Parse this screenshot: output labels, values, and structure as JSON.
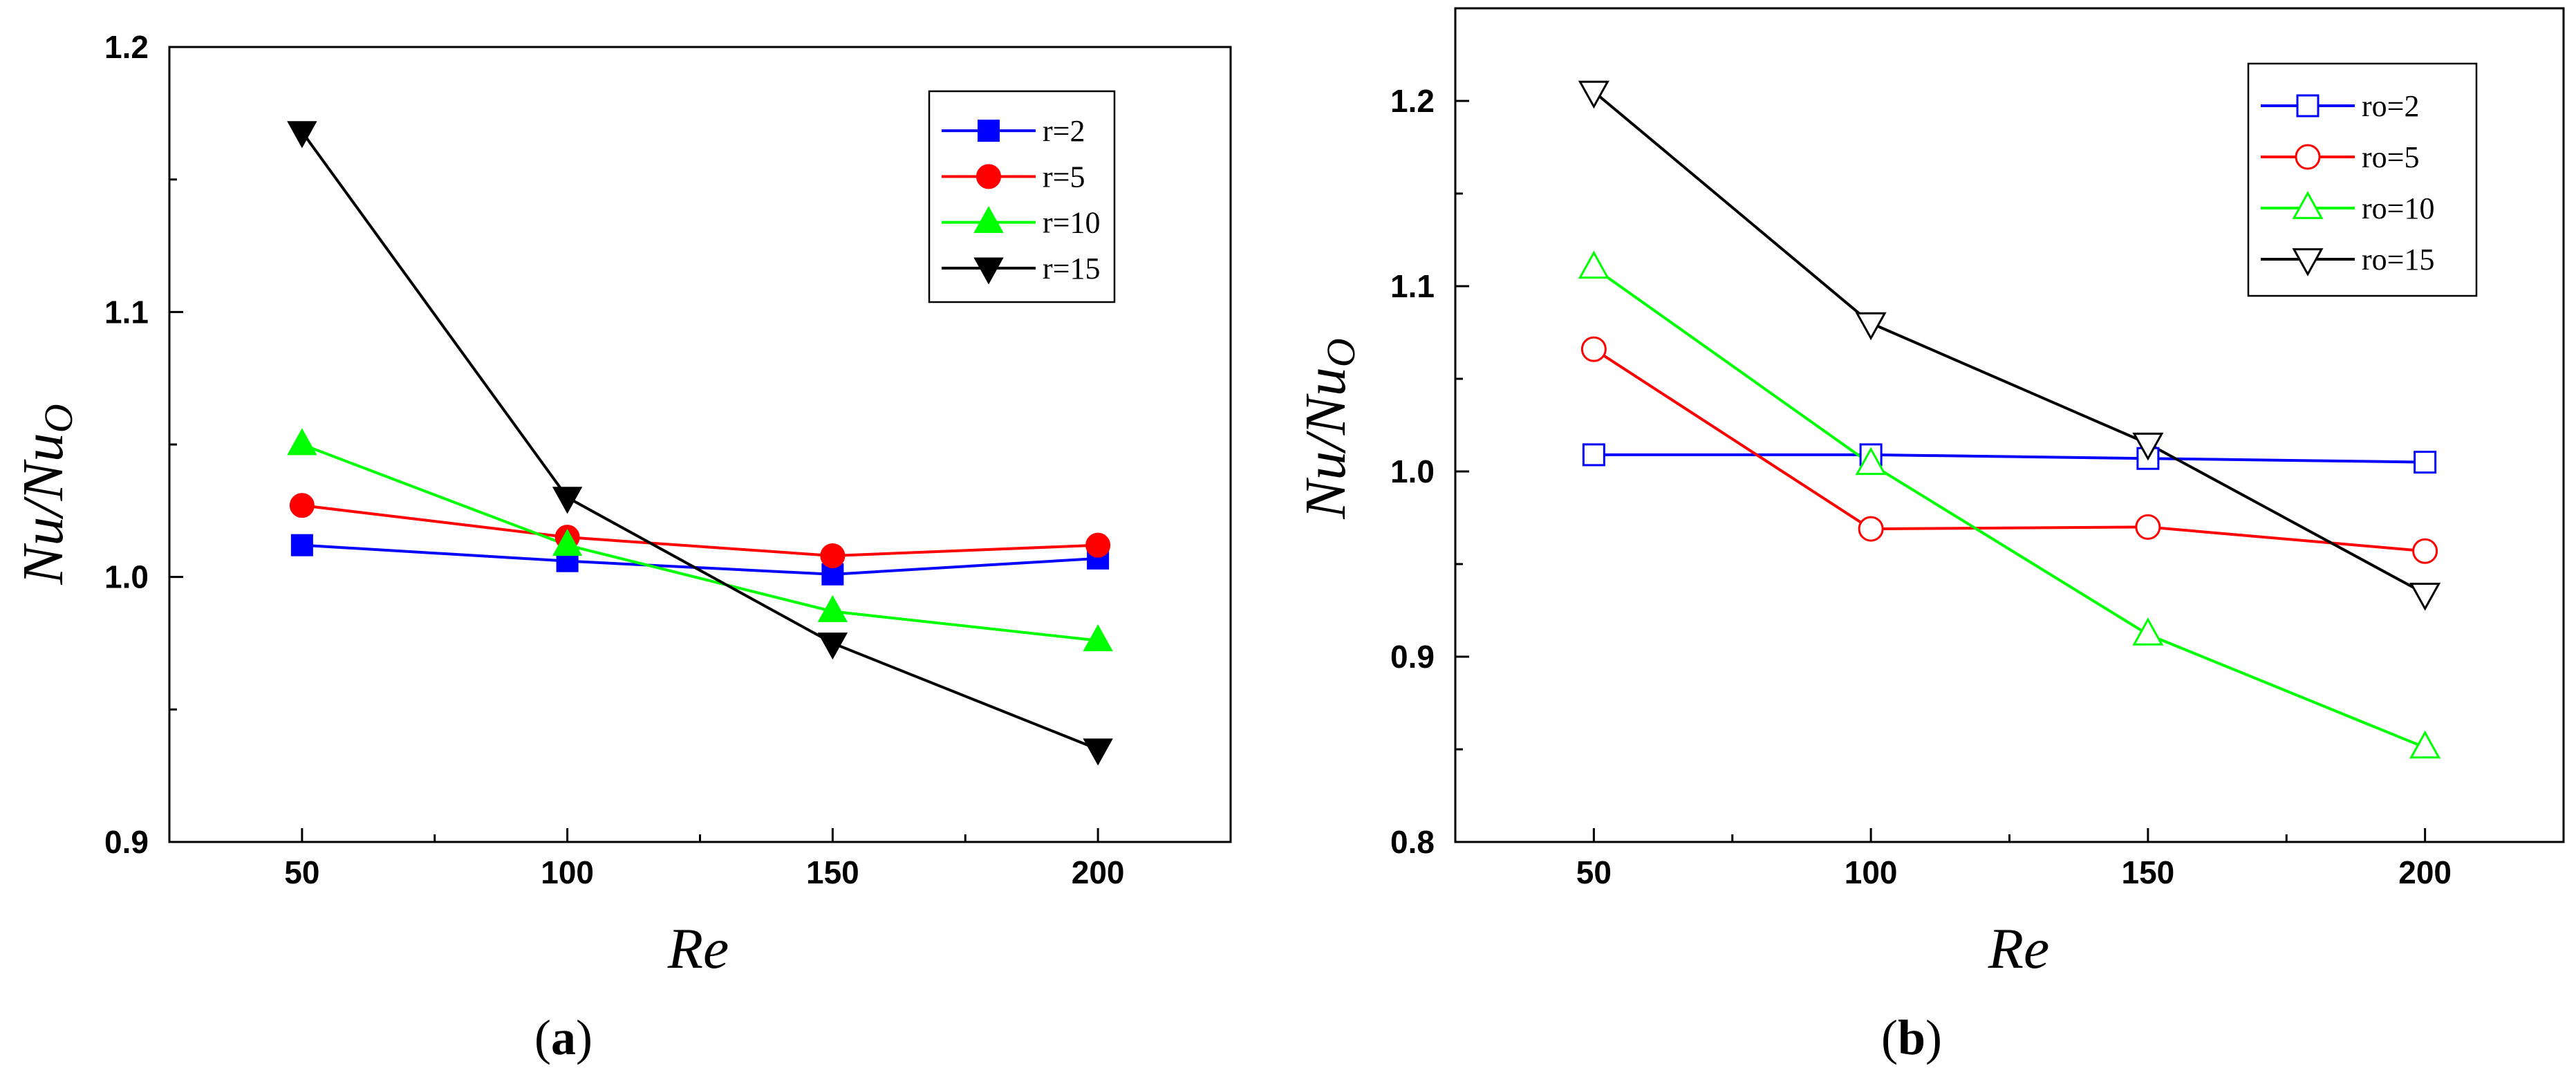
{
  "figure": {
    "panels": [
      {
        "caption_open": "(",
        "caption_letter": "a",
        "caption_close": ")",
        "xlabel": "Re",
        "ylabel": "Nu/Nu",
        "ylabel_sub": "O",
        "marker_fill": "filled"
      },
      {
        "caption_open": "(",
        "caption_letter": "b",
        "caption_close": ")",
        "xlabel": "Re",
        "ylabel": "Nu/Nu",
        "ylabel_sub": "O",
        "marker_fill": "open"
      }
    ]
  },
  "colors": {
    "blue": "#0000ff",
    "red": "#ff0000",
    "green": "#00ff00",
    "black": "#000000"
  },
  "chart_data": [
    {
      "type": "line",
      "title": "(a)",
      "xlabel": "Re",
      "ylabel": "Nu/Nu_O",
      "xlim": [
        25,
        225
      ],
      "ylim": [
        0.9,
        1.2
      ],
      "xticks": [
        50,
        100,
        150,
        200
      ],
      "xtick_labels": [
        "50",
        "100",
        "150",
        "200"
      ],
      "yticks": [
        0.9,
        1.0,
        1.1,
        1.2
      ],
      "ytick_labels": [
        "0.9",
        "1.0",
        "1.1",
        "1.2"
      ],
      "legend_position": "top-right",
      "x": [
        50,
        100,
        150,
        200
      ],
      "series": [
        {
          "name": "r=2",
          "color": "#0000ff",
          "marker": "square-filled",
          "values": [
            1.012,
            1.006,
            1.001,
            1.007
          ]
        },
        {
          "name": "r=5",
          "color": "#ff0000",
          "marker": "circle-filled",
          "values": [
            1.027,
            1.015,
            1.008,
            1.012
          ]
        },
        {
          "name": "r=10",
          "color": "#00ff00",
          "marker": "triangle-up-filled",
          "values": [
            1.05,
            1.012,
            0.987,
            0.976
          ]
        },
        {
          "name": "r=15",
          "color": "#000000",
          "marker": "triangle-down-filled",
          "values": [
            1.168,
            1.03,
            0.975,
            0.935
          ]
        }
      ]
    },
    {
      "type": "line",
      "title": "(b)",
      "xlabel": "Re",
      "ylabel": "Nu/Nu_O",
      "xlim": [
        25,
        225
      ],
      "ylim": [
        0.8,
        1.25
      ],
      "xticks": [
        50,
        100,
        150,
        200
      ],
      "xtick_labels": [
        "50",
        "100",
        "150",
        "200"
      ],
      "yticks": [
        0.8,
        0.9,
        1.0,
        1.1,
        1.2
      ],
      "ytick_labels": [
        "0.8",
        "0.9",
        "1.0",
        "1.1",
        "1.2"
      ],
      "legend_position": "top-right",
      "x": [
        50,
        100,
        150,
        200
      ],
      "series": [
        {
          "name": "ro=2",
          "color": "#0000ff",
          "marker": "square-open",
          "values": [
            1.009,
            1.009,
            1.007,
            1.005
          ]
        },
        {
          "name": "ro=5",
          "color": "#ff0000",
          "marker": "circle-open",
          "values": [
            1.066,
            0.969,
            0.97,
            0.957
          ]
        },
        {
          "name": "ro=10",
          "color": "#00ff00",
          "marker": "triangle-up-open",
          "values": [
            1.11,
            1.004,
            0.912,
            0.851
          ]
        },
        {
          "name": "ro=15",
          "color": "#000000",
          "marker": "triangle-down-open",
          "values": [
            1.205,
            1.08,
            1.015,
            0.934
          ]
        }
      ]
    }
  ]
}
